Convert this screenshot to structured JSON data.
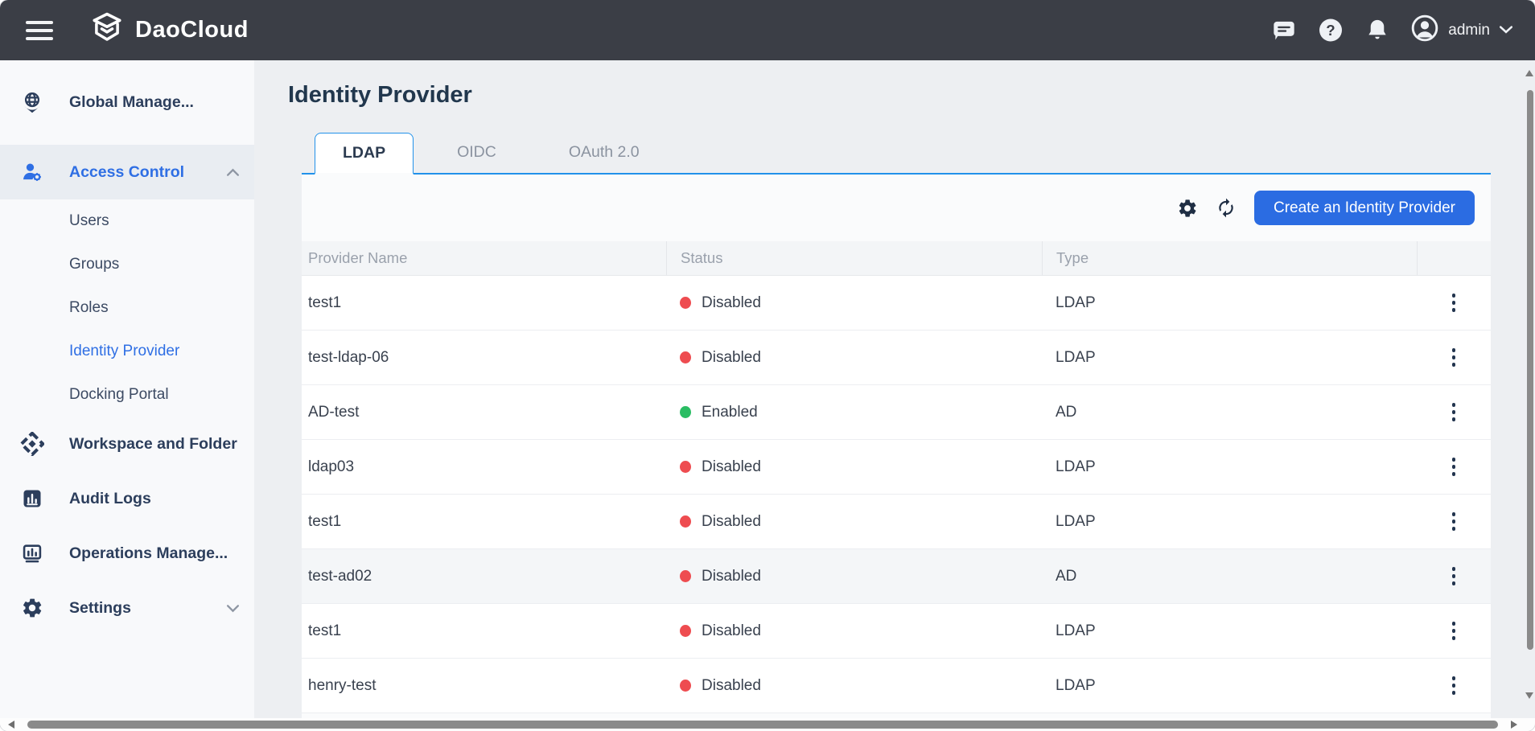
{
  "topbar": {
    "brand": "DaoCloud",
    "user": "admin",
    "icons": [
      "hamburger-icon",
      "cube-logo-icon",
      "chat-icon",
      "help-icon",
      "bell-icon",
      "avatar-icon",
      "caret-down-icon"
    ]
  },
  "sidebar": {
    "items": [
      {
        "label": "Global Manage...",
        "icon": "globe",
        "type": "section",
        "gap_after": true
      },
      {
        "label": "Access Control",
        "icon": "user-gear",
        "type": "section",
        "active": true,
        "chevron": "up"
      },
      {
        "label": "Users",
        "type": "sub"
      },
      {
        "label": "Groups",
        "type": "sub"
      },
      {
        "label": "Roles",
        "type": "sub"
      },
      {
        "label": "Identity Provider",
        "type": "sub",
        "active": true
      },
      {
        "label": "Docking Portal",
        "type": "sub"
      },
      {
        "label": "Workspace and Folder",
        "icon": "workspace",
        "type": "section"
      },
      {
        "label": "Audit Logs",
        "icon": "audit-logs",
        "type": "section"
      },
      {
        "label": "Operations Manage...",
        "icon": "operations",
        "type": "section"
      },
      {
        "label": "Settings",
        "icon": "settings",
        "type": "section",
        "chevron": "down"
      }
    ]
  },
  "page": {
    "title": "Identity Provider",
    "tabs": [
      {
        "label": "LDAP",
        "active": true
      },
      {
        "label": "OIDC",
        "active": false
      },
      {
        "label": "OAuth 2.0",
        "active": false
      }
    ],
    "toolbar": {
      "create_button": "Create an Identity Provider",
      "icons": [
        "settings-icon",
        "refresh-icon"
      ]
    }
  },
  "table": {
    "columns": [
      "Provider Name",
      "Status",
      "Type",
      ""
    ],
    "rows": [
      {
        "name": "test1",
        "status": "Disabled",
        "type": "LDAP"
      },
      {
        "name": "test-ldap-06",
        "status": "Disabled",
        "type": "LDAP"
      },
      {
        "name": "AD-test",
        "status": "Enabled",
        "type": "AD"
      },
      {
        "name": "ldap03",
        "status": "Disabled",
        "type": "LDAP"
      },
      {
        "name": "test1",
        "status": "Disabled",
        "type": "LDAP"
      },
      {
        "name": "test-ad02",
        "status": "Disabled",
        "type": "AD",
        "highlighted": true
      },
      {
        "name": "test1",
        "status": "Disabled",
        "type": "LDAP"
      },
      {
        "name": "henry-test",
        "status": "Disabled",
        "type": "LDAP"
      }
    ]
  },
  "colors": {
    "accent": "#2f6fe4",
    "button_blue": "#2b6ce2",
    "tab_border": "#2191ea",
    "status_enabled": "#2abd63",
    "status_disabled": "#ee4c50",
    "topbar_bg": "#3b3e46"
  }
}
